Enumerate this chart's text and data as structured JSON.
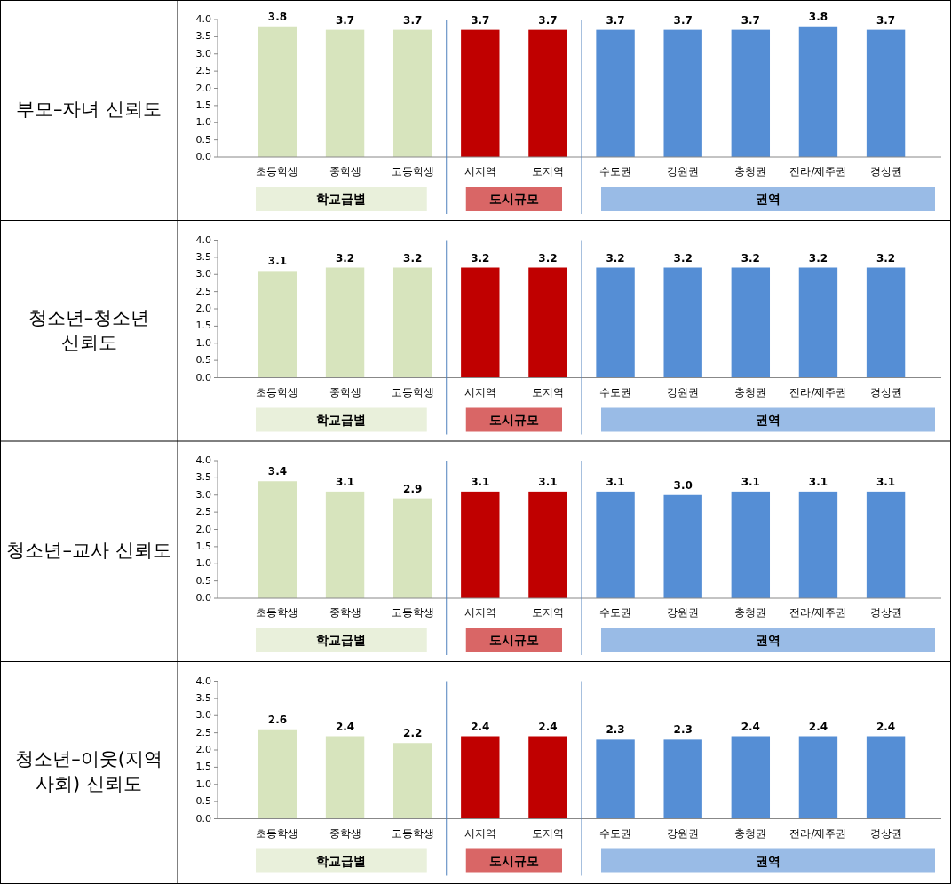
{
  "chart_data": [
    {
      "type": "bar",
      "title": "부모–자녀 신뢰도",
      "categories": [
        "초등학생",
        "중학생",
        "고등학생",
        "시지역",
        "도지역",
        "수도권",
        "강원권",
        "충청권",
        "전라/제주권",
        "경상권"
      ],
      "values": [
        3.8,
        3.7,
        3.7,
        3.7,
        3.7,
        3.7,
        3.7,
        3.7,
        3.8,
        3.7
      ],
      "colors": [
        "#d7e4bd",
        "#d7e4bd",
        "#d7e4bd",
        "#c00000",
        "#c00000",
        "#558ed5",
        "#558ed5",
        "#558ed5",
        "#558ed5",
        "#558ed5"
      ],
      "ylim": [
        0,
        4
      ],
      "yticks": [
        {
          "value": 0,
          "label": "0.0"
        },
        {
          "value": 0.5,
          "label": "0.5"
        },
        {
          "value": 1,
          "label": "1.0"
        },
        {
          "value": 1.5,
          "label": "1.5"
        },
        {
          "value": 2,
          "label": "2.0"
        },
        {
          "value": 2.5,
          "label": "2.5"
        },
        {
          "value": 3,
          "label": "3.0"
        },
        {
          "value": 3.5,
          "label": "3.5"
        },
        {
          "value": 4,
          "label": "4.0"
        }
      ],
      "data_labels": true,
      "grid": false,
      "annotations": [
        "학교급별",
        "도시규모",
        "권역"
      ]
    },
    {
      "type": "bar",
      "title": "청소년–청소년 신뢰도",
      "categories": [
        "초등학생",
        "중학생",
        "고등학생",
        "시지역",
        "도지역",
        "수도권",
        "강원권",
        "충청권",
        "전라/제주권",
        "경상권"
      ],
      "values": [
        3.1,
        3.2,
        3.2,
        3.2,
        3.2,
        3.2,
        3.2,
        3.2,
        3.2,
        3.2
      ],
      "colors": [
        "#d7e4bd",
        "#d7e4bd",
        "#d7e4bd",
        "#c00000",
        "#c00000",
        "#558ed5",
        "#558ed5",
        "#558ed5",
        "#558ed5",
        "#558ed5"
      ],
      "ylim": [
        0,
        4
      ],
      "yticks": [
        {
          "value": 0,
          "label": "0.0"
        },
        {
          "value": 0.5,
          "label": "0.5"
        },
        {
          "value": 1,
          "label": "1.0"
        },
        {
          "value": 1.5,
          "label": "1.5"
        },
        {
          "value": 2,
          "label": "2.0"
        },
        {
          "value": 2.5,
          "label": "2.5"
        },
        {
          "value": 3,
          "label": "3.0"
        },
        {
          "value": 3.5,
          "label": "3.5"
        },
        {
          "value": 4,
          "label": "4.0"
        }
      ],
      "data_labels": true,
      "grid": false,
      "annotations": [
        "학교급별",
        "도시규모",
        "권역"
      ]
    },
    {
      "type": "bar",
      "title": "청소년–교사 신뢰도",
      "categories": [
        "초등학생",
        "중학생",
        "고등학생",
        "시지역",
        "도지역",
        "수도권",
        "강원권",
        "충청권",
        "전라/제주권",
        "경상권"
      ],
      "values": [
        3.4,
        3.1,
        2.9,
        3.1,
        3.1,
        3.1,
        3.0,
        3.1,
        3.1,
        3.1
      ],
      "value_labels": [
        "3.4",
        "3.1",
        "2.9",
        "3.1",
        "3.1",
        "3.1",
        "3.0",
        "3.1",
        "3.1",
        "3.1"
      ],
      "colors": [
        "#d7e4bd",
        "#d7e4bd",
        "#d7e4bd",
        "#c00000",
        "#c00000",
        "#558ed5",
        "#558ed5",
        "#558ed5",
        "#558ed5",
        "#558ed5"
      ],
      "ylim": [
        0,
        4
      ],
      "yticks": [
        {
          "value": 0,
          "label": "0.0"
        },
        {
          "value": 0.5,
          "label": "0.5"
        },
        {
          "value": 1,
          "label": "1.0"
        },
        {
          "value": 1.5,
          "label": "1.5"
        },
        {
          "value": 2,
          "label": "2.0"
        },
        {
          "value": 2.5,
          "label": "2.5"
        },
        {
          "value": 3,
          "label": "3.0"
        },
        {
          "value": 3.5,
          "label": "3.5"
        },
        {
          "value": 4,
          "label": "4.0"
        }
      ],
      "grid": false,
      "annotations": [
        "학교급별",
        "도시규모",
        "권역"
      ]
    },
    {
      "type": "bar",
      "title": "청소년–이웃(지역 사회) 신뢰도",
      "categories": [
        "초등학생",
        "중학생",
        "고등학생",
        "시지역",
        "도지역",
        "수도권",
        "강원권",
        "충청권",
        "전라/제주권",
        "경상권"
      ],
      "values": [
        2.6,
        2.4,
        2.2,
        2.4,
        2.4,
        2.3,
        2.3,
        2.4,
        2.4,
        2.4
      ],
      "colors": [
        "#d7e4bd",
        "#d7e4bd",
        "#d7e4bd",
        "#c00000",
        "#c00000",
        "#558ed5",
        "#558ed5",
        "#558ed5",
        "#558ed5",
        "#558ed5"
      ],
      "ylim": [
        0,
        4
      ],
      "yticks": [
        {
          "value": 0,
          "label": "0.0"
        },
        {
          "value": 0.5,
          "label": "0.5"
        },
        {
          "value": 1,
          "label": "1.0"
        },
        {
          "value": 1.5,
          "label": "1.5"
        },
        {
          "value": 2,
          "label": "2.0"
        },
        {
          "value": 2.5,
          "label": "2.5"
        },
        {
          "value": 3,
          "label": "3.0"
        },
        {
          "value": 3.5,
          "label": "3.5"
        },
        {
          "value": 4,
          "label": "4.0"
        }
      ],
      "data_labels": true,
      "grid": false,
      "annotations": [
        "학교급별",
        "도시규모",
        "권역"
      ]
    }
  ]
}
